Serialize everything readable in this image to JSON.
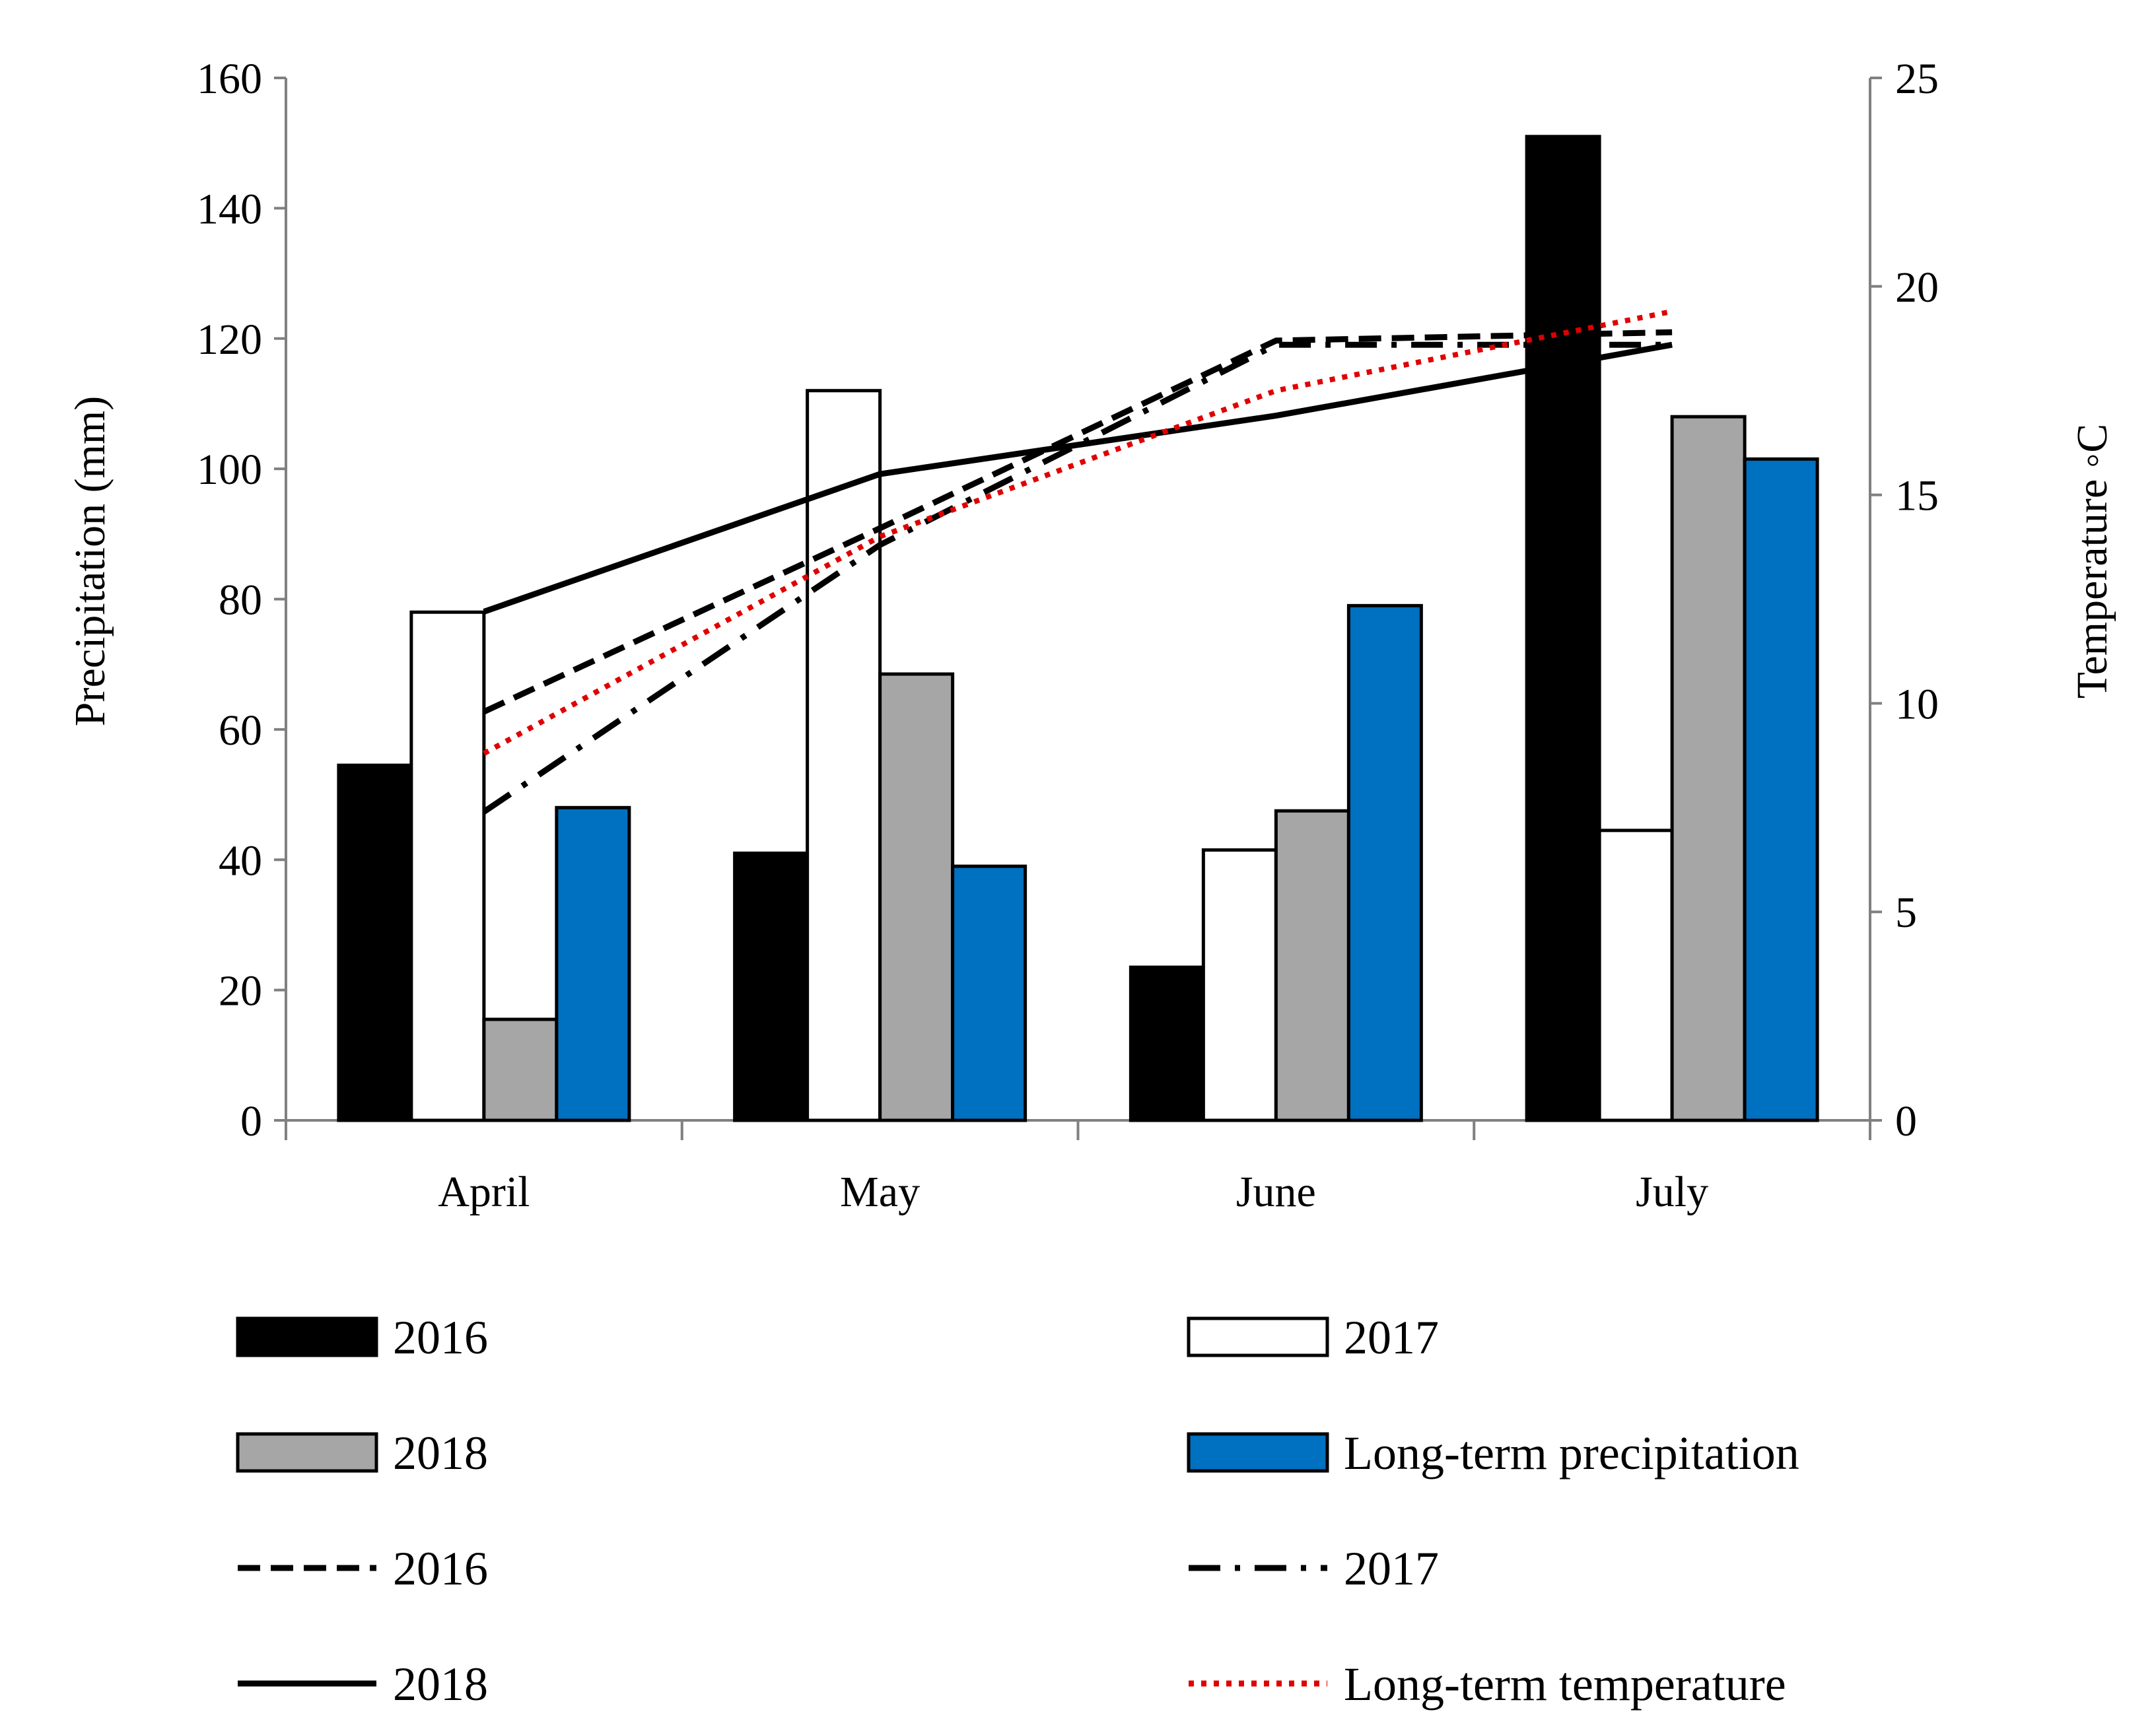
{
  "chart_data": {
    "type": "bar",
    "categories": [
      "April",
      "May",
      "June",
      "July"
    ],
    "y_left": {
      "label": "Precipitation (mm)",
      "min": 0,
      "max": 160,
      "step": 20,
      "ticks": [
        "0",
        "20",
        "40",
        "60",
        "80",
        "100",
        "120",
        "140",
        "160"
      ]
    },
    "y_right": {
      "label": "Temperature ◦C",
      "min": 0,
      "max": 25,
      "step": 5,
      "ticks": [
        "0",
        "5",
        "10",
        "15",
        "20",
        "25"
      ]
    },
    "bar_series": [
      {
        "name": "2016",
        "values": [
          54.5,
          41,
          23.5,
          151
        ],
        "fill": "#000000"
      },
      {
        "name": "2017",
        "values": [
          78,
          112,
          41.5,
          44.5
        ],
        "fill": "#ffffff"
      },
      {
        "name": "2018",
        "values": [
          15.5,
          68.5,
          47.5,
          108
        ],
        "fill": "#a6a6a6"
      },
      {
        "name": "Long-term precipitation",
        "values": [
          48,
          39,
          79,
          101.5
        ],
        "fill": "#0070c0"
      }
    ],
    "line_series": [
      {
        "name": "2016",
        "values": [
          9.8,
          14.2,
          18.7,
          18.9
        ],
        "color": "#000000",
        "dash": "34 16",
        "width": 9
      },
      {
        "name": "2017",
        "values": [
          7.4,
          13.8,
          18.6,
          18.6
        ],
        "color": "#000000",
        "dash": "48 22 8 22",
        "width": 9
      },
      {
        "name": "2018",
        "values": [
          12.2,
          15.5,
          16.9,
          18.6
        ],
        "color": "#000000",
        "dash": "",
        "width": 9
      },
      {
        "name": "Long-term temperature",
        "values": [
          8.8,
          14.0,
          17.5,
          19.4
        ],
        "color": "#e00000",
        "dash": "8 11",
        "width": 8
      }
    ],
    "legend": {
      "position": "bottom",
      "items": [
        {
          "label": "2016",
          "kind": "bar",
          "fill": "#000000"
        },
        {
          "label": "2017",
          "kind": "bar",
          "fill": "#ffffff"
        },
        {
          "label": "2018",
          "kind": "bar",
          "fill": "#a6a6a6"
        },
        {
          "label": "Long-term precipitation",
          "kind": "bar",
          "fill": "#0070c0"
        },
        {
          "label": "2016",
          "kind": "line",
          "color": "#000000",
          "dash": "34 16"
        },
        {
          "label": "2017",
          "kind": "line",
          "color": "#000000",
          "dash": "48 22 8 22"
        },
        {
          "label": "2018",
          "kind": "line",
          "color": "#000000",
          "dash": ""
        },
        {
          "label": "Long-term temperature",
          "kind": "line",
          "color": "#e00000",
          "dash": "8 11"
        }
      ]
    },
    "grid": false
  }
}
